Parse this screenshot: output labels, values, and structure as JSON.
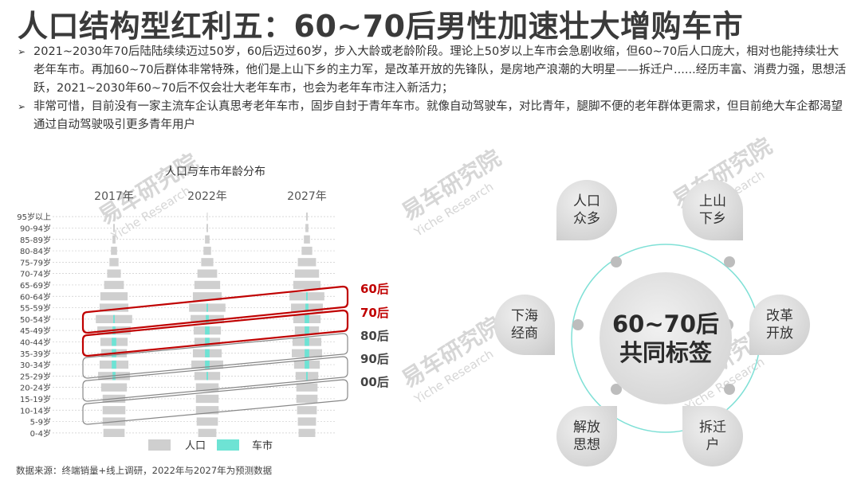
{
  "title": "人口结构型红利五：60~70后男性加速壮大增购车市",
  "bullets": [
    "2021~2030年70后陆陆续续迈过50岁，60后迈过60岁，步入大龄或老龄阶段。理论上50岁以上车市会急剧收缩，但60~70后人口庞大，相对也能持续壮大老年车市。再加60~70后群体非常特殊，他们是上山下乡的主力军，是改革开放的先锋队，是房地产浪潮的大明星——拆迁户......经历丰富、消费力强，思想活跃，2021~2030年60~70后不仅会壮大老年车市，也会为老年车市注入新活力；",
    "非常可惜，目前没有一家主流车企认真思考老年车市，固步自封于青年车市。就像自动驾驶车，对比青年，腿脚不便的老年群体更需求，但目前绝大车企都渴望通过自动驾驶吸引更多青年用户"
  ],
  "watermark": {
    "cn": "易车研究院",
    "en": "Yiche Research"
  },
  "chart_data": {
    "type": "bar",
    "title": "人口与车市年龄分布",
    "panels": [
      "2017年",
      "2022年",
      "2027年"
    ],
    "categories": [
      "95岁以上",
      "90-94岁",
      "85-89岁",
      "80-84岁",
      "75-79岁",
      "70-74岁",
      "65-69岁",
      "60-64岁",
      "55-59岁",
      "50-54岁",
      "45-49岁",
      "40-44岁",
      "35-39岁",
      "30-34岁",
      "25-29岁",
      "20-24岁",
      "15-19岁",
      "10-14岁",
      "5-9岁",
      "0-4岁"
    ],
    "series": [
      {
        "name": "人口",
        "color": "#cfcfcf",
        "values": [
          [
            0.5,
            1,
            2,
            4,
            6,
            9,
            13,
            18,
            19,
            24,
            22,
            18,
            17,
            19,
            21,
            17,
            15,
            15,
            15,
            14
          ],
          [
            0.5,
            1,
            3,
            5,
            8,
            13,
            17,
            19,
            24,
            22,
            18,
            17,
            19,
            21,
            17,
            15,
            15,
            15,
            14,
            12
          ],
          [
            1,
            2,
            4,
            7,
            12,
            16,
            18,
            23,
            21,
            18,
            16,
            19,
            20,
            17,
            15,
            14,
            14,
            13,
            12,
            11
          ]
        ]
      },
      {
        "name": "车市",
        "color": "#6ee3d4",
        "values": [
          [
            0,
            0,
            0,
            0,
            0,
            0,
            0,
            0,
            0,
            1,
            2,
            3,
            3,
            3,
            2,
            0,
            0,
            0,
            0,
            0
          ],
          [
            0,
            0,
            0,
            0,
            0,
            0,
            0,
            0,
            1,
            2,
            3,
            3,
            3,
            3,
            1,
            0,
            0,
            0,
            0,
            0
          ],
          [
            0,
            0,
            0,
            0,
            0,
            0,
            0,
            1,
            2,
            3,
            3,
            3,
            3,
            3,
            1,
            0,
            0,
            0,
            0,
            0
          ]
        ]
      }
    ],
    "generation_labels": [
      {
        "label": "60后",
        "color": "#c00000"
      },
      {
        "label": "70后",
        "color": "#c00000"
      },
      {
        "label": "80后",
        "color": "#444444"
      },
      {
        "label": "90后",
        "color": "#444444"
      },
      {
        "label": "00后",
        "color": "#444444"
      }
    ],
    "legend_position": "bottom"
  },
  "wheel": {
    "center": [
      "60~70后",
      "共同标签"
    ],
    "petals": [
      {
        "text": "人口众多"
      },
      {
        "text": "上山下乡"
      },
      {
        "text": "改革开放"
      },
      {
        "text": "拆迁户"
      },
      {
        "text": "解放思想"
      },
      {
        "text": "下海经商"
      }
    ]
  },
  "source": "数据来源：终端销量+线上调研，2022年与2027年为预测数据"
}
